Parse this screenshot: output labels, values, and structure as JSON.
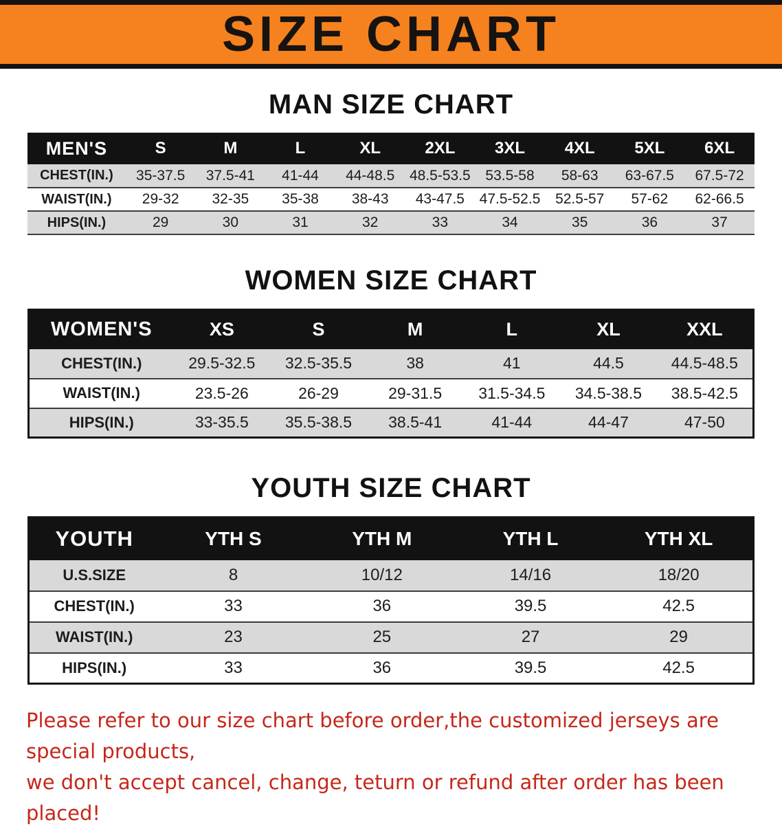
{
  "banner": {
    "title": "SIZE CHART"
  },
  "men": {
    "heading": "MAN SIZE CHART",
    "table": {
      "header": [
        "MEN'S",
        "S",
        "M",
        "L",
        "XL",
        "2XL",
        "3XL",
        "4XL",
        "5XL",
        "6XL"
      ],
      "rows": [
        {
          "label": "CHEST(IN.)",
          "values": [
            "35-37.5",
            "37.5-41",
            "41-44",
            "44-48.5",
            "48.5-53.5",
            "53.5-58",
            "58-63",
            "63-67.5",
            "67.5-72"
          ]
        },
        {
          "label": "WAIST(IN.)",
          "values": [
            "29-32",
            "32-35",
            "35-38",
            "38-43",
            "43-47.5",
            "47.5-52.5",
            "52.5-57",
            "57-62",
            "62-66.5"
          ]
        },
        {
          "label": "HIPS(IN.)",
          "values": [
            "29",
            "30",
            "31",
            "32",
            "33",
            "34",
            "35",
            "36",
            "37"
          ]
        }
      ]
    }
  },
  "women": {
    "heading": "WOMEN SIZE CHART",
    "table": {
      "header": [
        "WOMEN'S",
        "XS",
        "S",
        "M",
        "L",
        "XL",
        "XXL"
      ],
      "rows": [
        {
          "label": "CHEST(IN.)",
          "values": [
            "29.5-32.5",
            "32.5-35.5",
            "38",
            "41",
            "44.5",
            "44.5-48.5"
          ]
        },
        {
          "label": "WAIST(IN.)",
          "values": [
            "23.5-26",
            "26-29",
            "29-31.5",
            "31.5-34.5",
            "34.5-38.5",
            "38.5-42.5"
          ]
        },
        {
          "label": "HIPS(IN.)",
          "values": [
            "33-35.5",
            "35.5-38.5",
            "38.5-41",
            "41-44",
            "44-47",
            "47-50"
          ]
        }
      ]
    }
  },
  "youth": {
    "heading": "YOUTH SIZE CHART",
    "table": {
      "header": [
        "YOUTH",
        "YTH S",
        "YTH M",
        "YTH L",
        "YTH XL"
      ],
      "rows": [
        {
          "label": "U.S.SIZE",
          "values": [
            "8",
            "10/12",
            "14/16",
            "18/20"
          ]
        },
        {
          "label": "CHEST(IN.)",
          "values": [
            "33",
            "36",
            "39.5",
            "42.5"
          ]
        },
        {
          "label": "WAIST(IN.)",
          "values": [
            "23",
            "25",
            "27",
            "29"
          ]
        },
        {
          "label": "HIPS(IN.)",
          "values": [
            "33",
            "36",
            "39.5",
            "42.5"
          ]
        }
      ]
    }
  },
  "notice": {
    "line1": "Please refer to our size chart before order,the customized jerseys are special products,",
    "line2": "we don't accept cancel, change, teturn or refund after order has been placed!"
  },
  "colors": {
    "banner_bg": "#F5821F",
    "header_bg": "#121212",
    "stripe": "#D9D9D9",
    "notice_text": "#C6271A"
  }
}
